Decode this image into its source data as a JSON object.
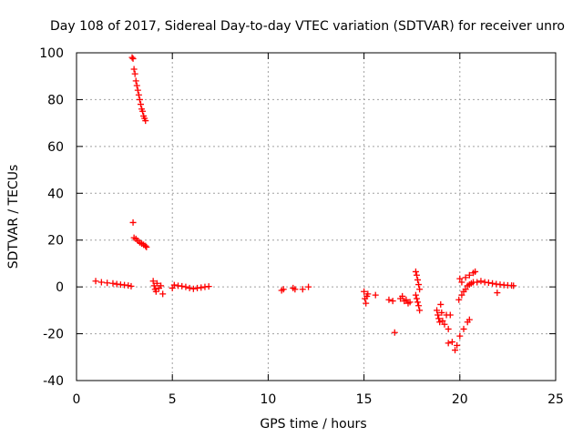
{
  "chart_data": {
    "type": "scatter",
    "title": "Day 108 of 2017, Sidereal Day-to-day VTEC variation (SDTVAR) for receiver unro",
    "xlabel": "GPS time / hours",
    "ylabel": "SDTVAR / TECUs",
    "xlim": [
      0,
      25
    ],
    "ylim": [
      -40,
      100
    ],
    "xticks": [
      0,
      5,
      10,
      15,
      20,
      25
    ],
    "yticks": [
      -40,
      -20,
      0,
      20,
      40,
      60,
      80,
      100
    ],
    "xtick_labels": [
      "0",
      "5",
      "10",
      "15",
      "20",
      "25"
    ],
    "ytick_labels": [
      "-40",
      "-20",
      "0",
      "20",
      "40",
      "60",
      "80",
      "100"
    ],
    "grid": true,
    "marker": "+",
    "marker_color": "#ff0000",
    "series": [
      {
        "name": "SDTVAR",
        "points": [
          [
            1.0,
            2.5
          ],
          [
            1.3,
            2.0
          ],
          [
            1.6,
            1.7
          ],
          [
            1.9,
            1.5
          ],
          [
            2.1,
            1.2
          ],
          [
            2.3,
            1.0
          ],
          [
            2.5,
            0.8
          ],
          [
            2.7,
            0.6
          ],
          [
            2.85,
            0.3
          ],
          [
            2.9,
            98.0
          ],
          [
            2.95,
            97.5
          ],
          [
            3.0,
            93.0
          ],
          [
            3.05,
            91.0
          ],
          [
            3.1,
            88.0
          ],
          [
            3.15,
            86.0
          ],
          [
            3.2,
            84.0
          ],
          [
            3.25,
            82.0
          ],
          [
            3.3,
            80.0
          ],
          [
            3.35,
            78.0
          ],
          [
            3.4,
            76.0
          ],
          [
            3.45,
            75.0
          ],
          [
            3.5,
            73.0
          ],
          [
            3.55,
            72.0
          ],
          [
            3.6,
            71.0
          ],
          [
            2.95,
            27.5
          ],
          [
            3.0,
            21.0
          ],
          [
            3.1,
            20.5
          ],
          [
            3.2,
            19.7
          ],
          [
            3.3,
            19.0
          ],
          [
            3.4,
            18.5
          ],
          [
            3.5,
            18.0
          ],
          [
            3.6,
            17.5
          ],
          [
            3.65,
            17.0
          ],
          [
            4.0,
            2.5
          ],
          [
            4.05,
            0.5
          ],
          [
            4.1,
            -1.0
          ],
          [
            4.15,
            -2.0
          ],
          [
            4.2,
            1.5
          ],
          [
            4.3,
            -0.5
          ],
          [
            4.4,
            0.5
          ],
          [
            4.5,
            -3.0
          ],
          [
            5.0,
            -0.5
          ],
          [
            5.1,
            0.8
          ],
          [
            5.3,
            0.5
          ],
          [
            5.5,
            0.3
          ],
          [
            5.7,
            0.0
          ],
          [
            5.9,
            -0.5
          ],
          [
            6.1,
            -0.8
          ],
          [
            6.3,
            -0.5
          ],
          [
            6.5,
            -0.3
          ],
          [
            6.7,
            0.0
          ],
          [
            6.9,
            0.2
          ],
          [
            10.7,
            -1.5
          ],
          [
            10.8,
            -1.0
          ],
          [
            11.3,
            -0.5
          ],
          [
            11.4,
            -1.0
          ],
          [
            11.8,
            -1.0
          ],
          [
            12.1,
            0.0
          ],
          [
            15.0,
            -2.0
          ],
          [
            15.05,
            -5.0
          ],
          [
            15.1,
            -7.0
          ],
          [
            15.15,
            -4.0
          ],
          [
            15.2,
            -3.0
          ],
          [
            15.6,
            -3.5
          ],
          [
            16.3,
            -5.5
          ],
          [
            16.5,
            -6.0
          ],
          [
            16.6,
            -19.5
          ],
          [
            16.9,
            -5.0
          ],
          [
            17.0,
            -4.0
          ],
          [
            17.1,
            -6.0
          ],
          [
            17.2,
            -5.5
          ],
          [
            17.3,
            -7.0
          ],
          [
            17.4,
            -6.5
          ],
          [
            17.7,
            6.5
          ],
          [
            17.75,
            5.0
          ],
          [
            17.8,
            3.0
          ],
          [
            17.85,
            1.0
          ],
          [
            17.9,
            -1.0
          ],
          [
            17.7,
            -3.5
          ],
          [
            17.75,
            -5.0
          ],
          [
            17.8,
            -6.5
          ],
          [
            17.85,
            -8.0
          ],
          [
            17.9,
            -10.0
          ],
          [
            18.8,
            -10.0
          ],
          [
            18.85,
            -12.0
          ],
          [
            18.9,
            -13.5
          ],
          [
            18.95,
            -15.0
          ],
          [
            19.0,
            -7.5
          ],
          [
            19.05,
            -11.0
          ],
          [
            19.1,
            -14.5
          ],
          [
            19.2,
            -16.0
          ],
          [
            19.3,
            -12.0
          ],
          [
            19.4,
            -18.0
          ],
          [
            19.5,
            -12.0
          ],
          [
            19.4,
            -24.0
          ],
          [
            19.6,
            -23.5
          ],
          [
            19.75,
            -27.0
          ],
          [
            19.85,
            -25.0
          ],
          [
            20.0,
            -21.0
          ],
          [
            20.2,
            -18.0
          ],
          [
            20.4,
            -15.0
          ],
          [
            20.5,
            -14.0
          ],
          [
            19.95,
            -5.5
          ],
          [
            20.1,
            -3.5
          ],
          [
            20.2,
            -2.0
          ],
          [
            20.3,
            -1.0
          ],
          [
            20.4,
            0.5
          ],
          [
            20.5,
            1.0
          ],
          [
            20.6,
            1.5
          ],
          [
            20.7,
            2.0
          ],
          [
            20.0,
            3.5
          ],
          [
            20.1,
            2.0
          ],
          [
            20.3,
            4.0
          ],
          [
            20.5,
            5.0
          ],
          [
            20.7,
            6.0
          ],
          [
            20.8,
            6.5
          ],
          [
            20.9,
            2.0
          ],
          [
            21.1,
            2.5
          ],
          [
            21.3,
            2.0
          ],
          [
            21.5,
            1.8
          ],
          [
            21.7,
            1.5
          ],
          [
            21.9,
            1.2
          ],
          [
            21.95,
            -2.5
          ],
          [
            22.1,
            1.0
          ],
          [
            22.3,
            0.8
          ],
          [
            22.5,
            0.7
          ],
          [
            22.7,
            0.6
          ],
          [
            22.8,
            0.5
          ]
        ]
      }
    ]
  }
}
